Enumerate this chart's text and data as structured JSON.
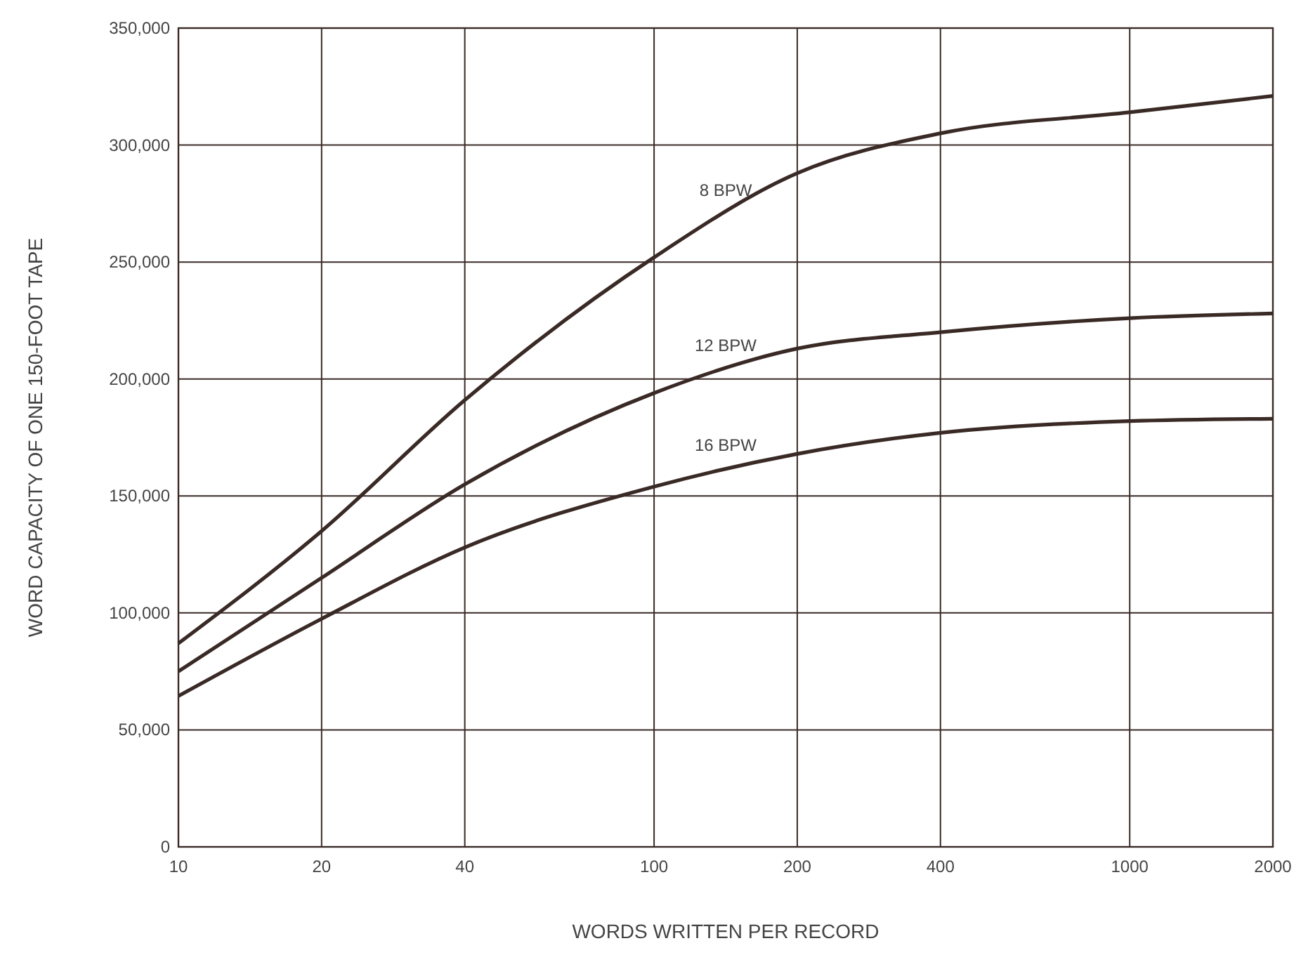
{
  "chart_data": {
    "type": "line",
    "xlabel": "WORDS WRITTEN PER RECORD",
    "ylabel": "WORD CAPACITY OF ONE 150-FOOT TAPE",
    "log": "x",
    "grid": true,
    "line_style": "solid",
    "marker": "none",
    "x": [
      10,
      20,
      40,
      100,
      200,
      400,
      1000,
      2000
    ],
    "xlim": [
      10,
      2000
    ],
    "xticks": [
      10,
      20,
      40,
      100,
      200,
      400,
      1000,
      2000
    ],
    "ylim": [
      0,
      350000
    ],
    "yticks": [
      0,
      {
        "value": 50000,
        "label": "50,000"
      },
      {
        "value": 100000,
        "label": "100,000"
      },
      {
        "value": 150000,
        "label": "150,000"
      },
      {
        "value": 200000,
        "label": "200,000"
      },
      {
        "value": 250000,
        "label": "250,000"
      },
      {
        "value": 300000,
        "label": "300,000"
      },
      {
        "value": 350000,
        "label": "350,000"
      }
    ],
    "series": [
      {
        "name": "8 BPW",
        "color": "#3a2a26",
        "values": [
          87000,
          135000,
          191000,
          252000,
          288000,
          305000,
          314000,
          321000
        ]
      },
      {
        "name": "12 BPW",
        "color": "#3a2a26",
        "values": [
          75000,
          115000,
          155000,
          194000,
          213000,
          220000,
          226000,
          228000
        ]
      },
      {
        "name": "16 BPW",
        "color": "#3a2a26",
        "values": [
          64500,
          97500,
          128000,
          154000,
          168000,
          177000,
          182000,
          183000
        ]
      }
    ]
  }
}
